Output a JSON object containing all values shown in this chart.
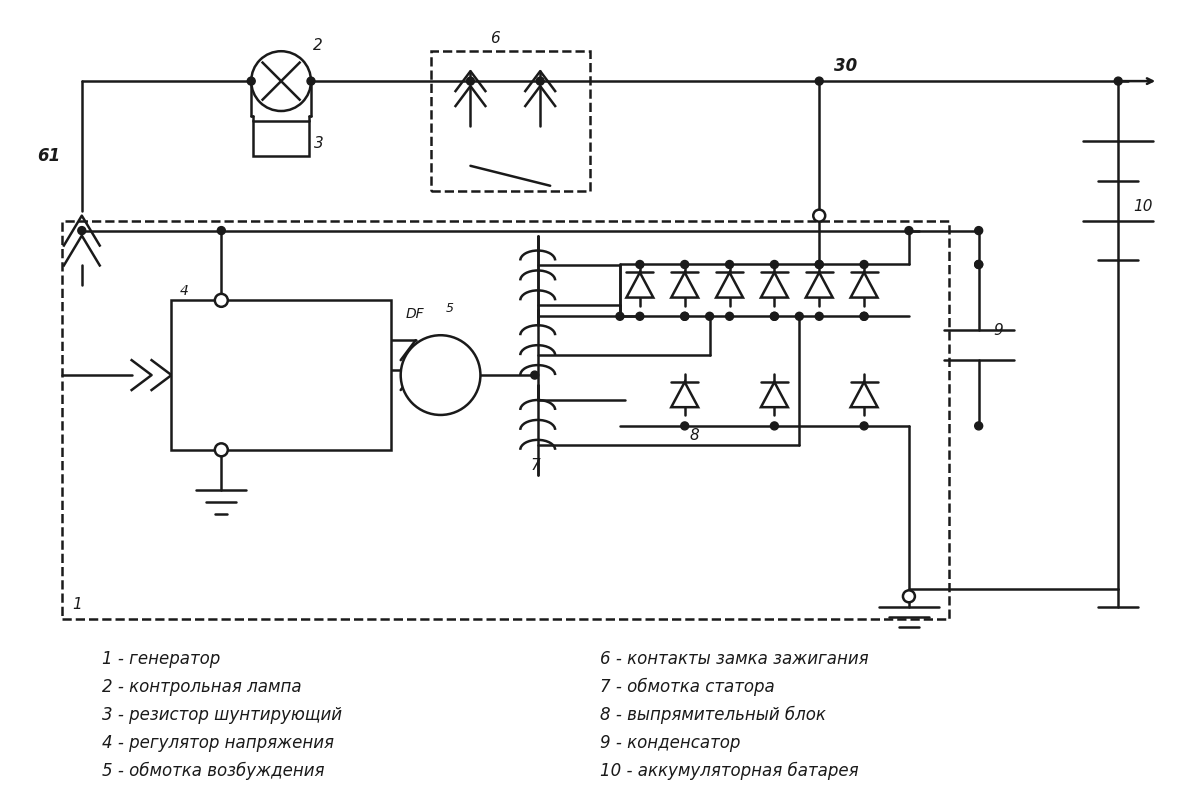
{
  "background": "#ffffff",
  "line_color": "#1a1a1a",
  "line_width": 1.8,
  "legend_items_left": [
    "1 - генератор",
    "2 - контрольная лампа",
    "3 - резистор шунтирующий",
    "4 - регулятор напряжения",
    "5 - обмотка возбуждения"
  ],
  "legend_items_right": [
    "6 - контакты замка зажигания",
    "7 - обмотка статора",
    "8 - выпрямительный блок",
    "9 - конденсатор",
    "10 - аккумуляторная батарея"
  ],
  "font_size": 12
}
